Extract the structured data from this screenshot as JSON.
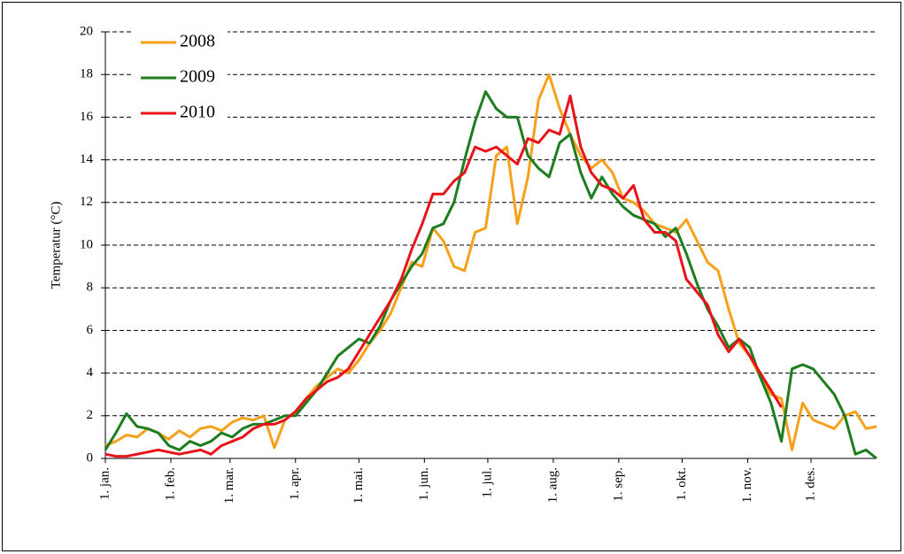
{
  "chart_data": {
    "type": "line",
    "y_label": "Temperatur (°C)",
    "x": [
      1,
      6,
      11,
      16,
      21,
      26,
      31,
      36,
      41,
      46,
      51,
      56,
      61,
      66,
      71,
      76,
      81,
      86,
      91,
      96,
      101,
      106,
      111,
      116,
      121,
      126,
      131,
      136,
      141,
      146,
      151,
      156,
      161,
      166,
      171,
      176,
      181,
      186,
      191,
      196,
      201,
      206,
      211,
      216,
      221,
      226,
      231,
      236,
      241,
      246,
      251,
      256,
      261,
      266,
      271,
      276,
      281,
      286,
      291,
      296,
      301,
      306,
      311,
      316,
      321,
      326,
      331,
      336,
      341,
      346,
      351,
      356,
      361,
      366
    ],
    "xlim": [
      1,
      366
    ],
    "xticks": [
      {
        "value": 1,
        "label": "1. jan."
      },
      {
        "value": 32,
        "label": "1. feb."
      },
      {
        "value": 60,
        "label": "1. mar."
      },
      {
        "value": 91,
        "label": "1. apr."
      },
      {
        "value": 121,
        "label": "1. mai."
      },
      {
        "value": 152,
        "label": "1. jun."
      },
      {
        "value": 182,
        "label": "1. jul."
      },
      {
        "value": 213,
        "label": "1. aug."
      },
      {
        "value": 244,
        "label": "1. sep."
      },
      {
        "value": 274,
        "label": "1. okt."
      },
      {
        "value": 305,
        "label": "1. nov."
      },
      {
        "value": 335,
        "label": "1. des."
      }
    ],
    "ylim": [
      0,
      20
    ],
    "yticks": [
      0,
      2,
      4,
      6,
      8,
      10,
      12,
      14,
      16,
      18,
      20
    ],
    "grid": true,
    "legend": "top-left",
    "series": [
      {
        "name": "2008",
        "color": "#f7a11a",
        "values": [
          0.6,
          0.8,
          1.1,
          1.0,
          1.4,
          1.2,
          0.9,
          1.3,
          1.0,
          1.4,
          1.5,
          1.3,
          1.7,
          1.9,
          1.8,
          2.0,
          0.5,
          1.8,
          2.2,
          2.8,
          3.4,
          3.8,
          4.2,
          4.0,
          4.6,
          5.4,
          6.0,
          6.8,
          8.0,
          9.2,
          9.0,
          10.8,
          10.2,
          9.0,
          8.8,
          10.6,
          10.8,
          14.2,
          14.6,
          11.0,
          13.2,
          16.8,
          18.0,
          16.4,
          15.2,
          14.2,
          13.6,
          14.0,
          13.4,
          12.2,
          12.0,
          11.6,
          11.0,
          10.8,
          10.6,
          11.2,
          10.2,
          9.2,
          8.8,
          7.0,
          5.4,
          4.8,
          3.8,
          3.0,
          2.8,
          0.4,
          2.6,
          1.8,
          1.6,
          1.4,
          2.0,
          2.2,
          1.4,
          1.5
        ]
      },
      {
        "name": "2009",
        "color": "#1e7d1e",
        "values": [
          0.4,
          1.2,
          2.1,
          1.5,
          1.4,
          1.2,
          0.6,
          0.4,
          0.8,
          0.6,
          0.8,
          1.2,
          1.0,
          1.4,
          1.6,
          1.6,
          1.8,
          2.0,
          2.0,
          2.6,
          3.2,
          4.0,
          4.8,
          5.2,
          5.6,
          5.4,
          6.2,
          7.4,
          8.2,
          9.0,
          9.6,
          10.8,
          11.0,
          12.0,
          14.0,
          15.8,
          17.2,
          16.4,
          16.0,
          16.0,
          14.2,
          13.6,
          13.2,
          14.8,
          15.2,
          13.4,
          12.2,
          13.2,
          12.4,
          11.8,
          11.4,
          11.2,
          11.0,
          10.4,
          10.8,
          9.6,
          8.2,
          7.0,
          6.2,
          5.2,
          5.6,
          5.2,
          3.8,
          2.6,
          0.8,
          4.2,
          4.4,
          4.2,
          3.6,
          3.0,
          2.0,
          0.2,
          0.4,
          0.0
        ]
      },
      {
        "name": "2010",
        "color": "#e8141a",
        "values": [
          0.2,
          0.1,
          0.1,
          0.2,
          0.3,
          0.4,
          0.3,
          0.2,
          0.3,
          0.4,
          0.2,
          0.6,
          0.8,
          1.0,
          1.4,
          1.6,
          1.6,
          1.8,
          2.2,
          2.8,
          3.2,
          3.6,
          3.8,
          4.2,
          5.0,
          5.8,
          6.6,
          7.4,
          8.4,
          9.8,
          11.0,
          12.4,
          12.4,
          13.0,
          13.4,
          14.6,
          14.4,
          14.6,
          14.2,
          13.8,
          15.0,
          14.8,
          15.4,
          15.2,
          17.0,
          14.6,
          13.4,
          12.8,
          12.6,
          12.2,
          12.8,
          11.2,
          10.6,
          10.6,
          10.2,
          8.4,
          7.8,
          7.2,
          5.8,
          5.0,
          5.6,
          4.8,
          4.0,
          3.2,
          2.4,
          null,
          null,
          null,
          null,
          null,
          null,
          null,
          null,
          null
        ]
      }
    ]
  }
}
